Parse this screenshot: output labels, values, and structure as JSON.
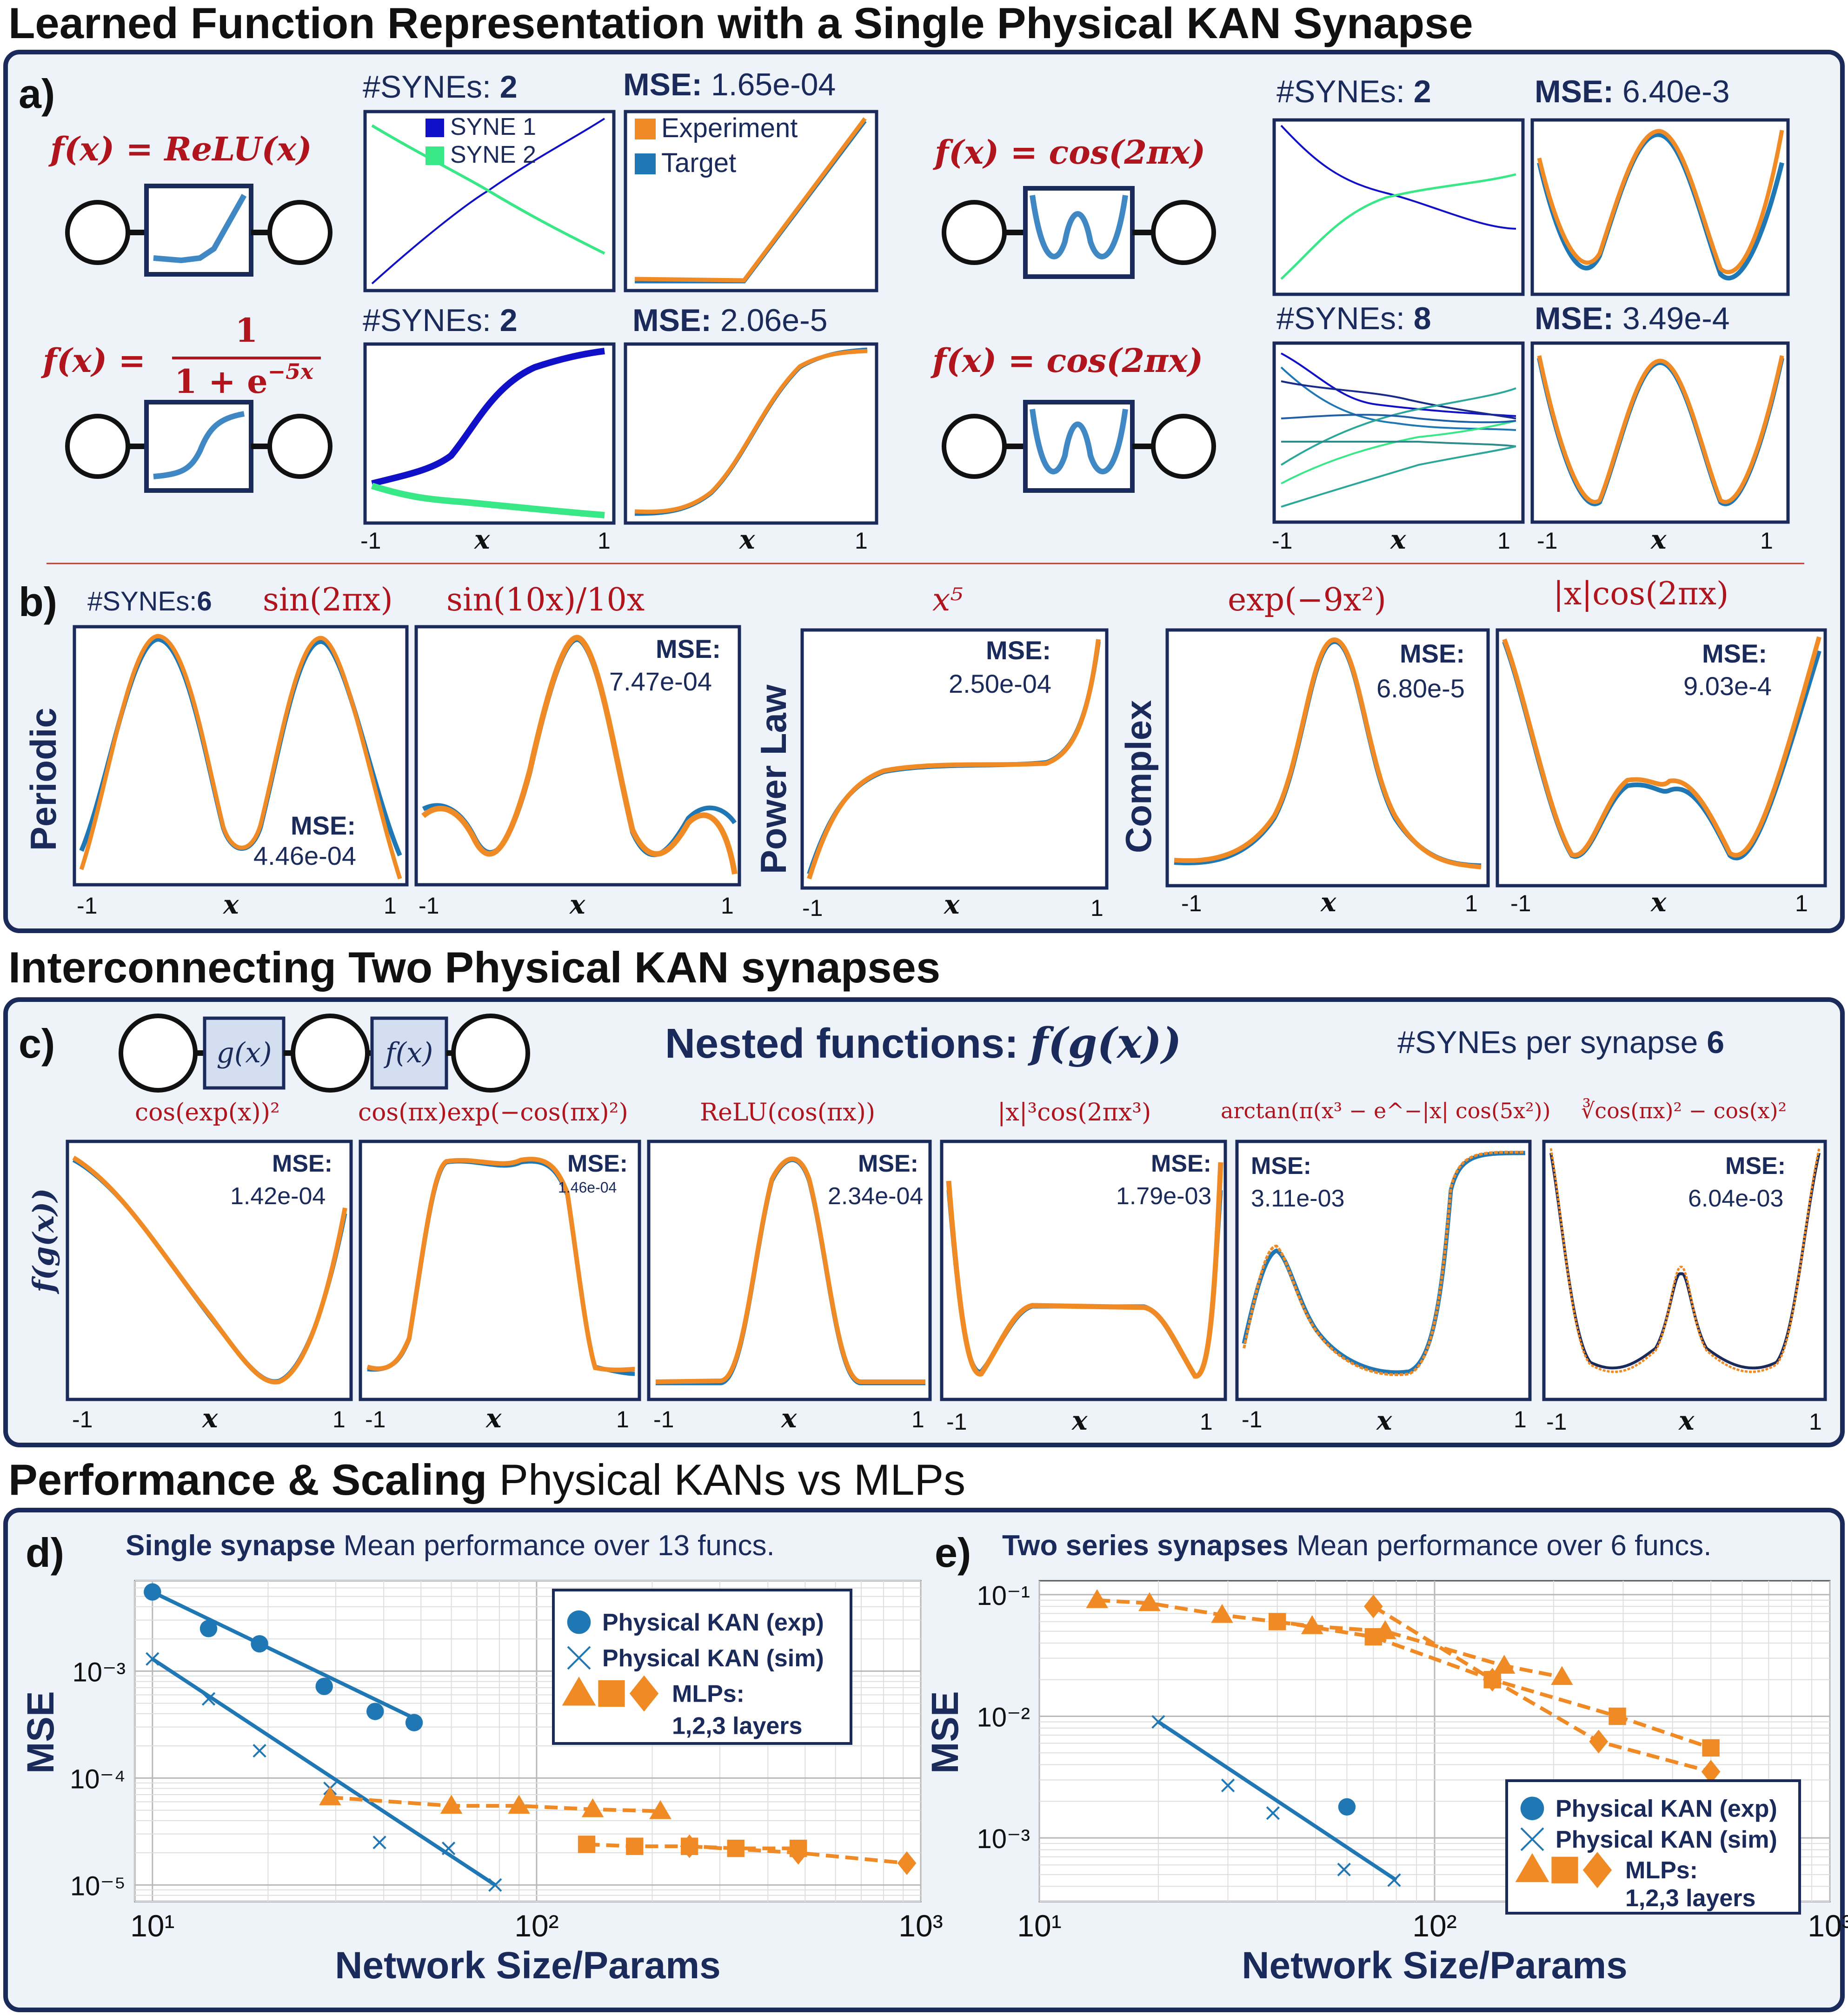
{
  "colors": {
    "navy": "#1a2a5a",
    "panel_bg": "#eef3fa",
    "func_red": "#b0141c",
    "exp_orange": "#f08a24",
    "target_blue": "#1f77b4",
    "syne1": "#1010c8",
    "syne2": "#38e887",
    "teal": "#2aa69a"
  },
  "sections": {
    "title1": "Learned Function Representation with a Single Physical KAN Synapse",
    "title2": "Interconnecting Two Physical KAN synapses",
    "title3_bold": "Performance & Scaling",
    "title3_rest": " Physical KANs vs MLPs"
  },
  "panel_a": {
    "label": "a)",
    "cases": [
      {
        "func": "f(x) = ReLU(x)",
        "synes_label": "#SYNEs:",
        "synes": "2",
        "mse_label": "MSE:",
        "mse": "1.65e-04",
        "legend_syne": [
          "SYNE 1",
          "SYNE 2"
        ],
        "legend_fit": [
          "Experiment",
          "Target"
        ]
      },
      {
        "func_lhs": "f(x) =",
        "func_num": "1",
        "func_den": "1 + e",
        "func_exp": "−5x",
        "synes_label": "#SYNEs:",
        "synes": "2",
        "mse_label": "MSE:",
        "mse": "2.06e-5"
      },
      {
        "func": "f(x) = cos(2πx)",
        "synes_label": "#SYNEs:",
        "synes": "2",
        "mse_label": "MSE:",
        "mse": "6.40e-3"
      },
      {
        "func": "f(x) = cos(2πx)",
        "synes_label": "#SYNEs:",
        "synes": "8",
        "mse_label": "MSE:",
        "mse": "3.49e-4"
      }
    ],
    "tick_left": "-1",
    "tick_right": "1",
    "xlabel": "x"
  },
  "panel_b": {
    "label": "b)",
    "synes_label": "#SYNEs:",
    "synes": "6",
    "groups": [
      "Periodic",
      "Power Law",
      "Complex"
    ],
    "plots": [
      {
        "func": "sin(2πx)",
        "mse_label": "MSE:",
        "mse": "4.46e-04"
      },
      {
        "func": "sin(10x)/10x",
        "mse_label": "MSE:",
        "mse": "7.47e-04"
      },
      {
        "func": "x⁵",
        "mse_label": "MSE:",
        "mse": "2.50e-04"
      },
      {
        "func": "exp(−9x²)",
        "mse_label": "MSE:",
        "mse": "6.80e-5"
      },
      {
        "func": "|x|cos(2πx)",
        "mse_label": "MSE:",
        "mse": "9.03e-4"
      }
    ],
    "tick_left": "-1",
    "tick_right": "1",
    "xlabel": "x"
  },
  "panel_c": {
    "label": "c)",
    "node_g": "g(x)",
    "node_f": "f(x)",
    "nested_title": "Nested functions:",
    "nested_expr": "f(g(x))",
    "synes_label": "#SYNEs per synapse",
    "synes": "6",
    "ylabel": "f(g(x))",
    "plots": [
      {
        "func": "cos(exp(x))²",
        "mse_label": "MSE:",
        "mse": "1.42e-04"
      },
      {
        "func": "cos(πx)exp(−cos(πx)²)",
        "mse_label": "MSE:",
        "mse": "1.46e-04"
      },
      {
        "func": "ReLU(cos(πx))",
        "mse_label": "MSE:",
        "mse": "2.34e-04"
      },
      {
        "func": "|x|³cos(2πx³)",
        "mse_label": "MSE:",
        "mse": "1.79e-03"
      },
      {
        "func": "arctan(π(x³ − e^−|x| cos(5x²))",
        "mse_label": "MSE:",
        "mse": "3.11e-03"
      },
      {
        "func": "∛cos(πx)² − cos(x)²",
        "mse_label": "MSE:",
        "mse": "6.04e-03"
      }
    ],
    "tick_left": "-1",
    "tick_right": "1",
    "xlabel": "x"
  },
  "panel_d": {
    "label": "d)",
    "title_bold": "Single synapse",
    "title_rest": " Mean performance over 13 funcs."
  },
  "panel_e": {
    "label": "e)",
    "title_bold": "Two series synapses",
    "title_rest": " Mean performance over 6 funcs."
  },
  "chart_data": [
    {
      "type": "scatter",
      "panel": "d",
      "title": "Single synapse Mean performance over 13 funcs.",
      "xlabel": "Network Size/Params",
      "ylabel": "MSE",
      "xscale": "log",
      "yscale": "log",
      "xlim": [
        9,
        1000
      ],
      "ylim": [
        7e-06,
        0.007
      ],
      "xtick_labels": [
        "10¹",
        "10²",
        "10³"
      ],
      "ytick_labels": [
        "10⁻³",
        "10⁻⁴",
        "10⁻⁵"
      ],
      "grid": true,
      "legend_position": "top-right",
      "legend": [
        "Physical KAN (exp)",
        "Physical KAN (sim)",
        "MLPs:",
        "1,2,3 layers"
      ],
      "series": [
        {
          "name": "Physical KAN (exp)",
          "marker": "circle",
          "fit_line": [
            [
              10,
              0.0055
            ],
            [
              49,
              0.00035
            ]
          ],
          "x": [
            10,
            14,
            19,
            28,
            38,
            48
          ],
          "y": [
            0.0055,
            0.0025,
            0.0018,
            0.00072,
            0.00042,
            0.00033
          ]
        },
        {
          "name": "Physical KAN (sim)",
          "marker": "x",
          "fit_line": [
            [
              10,
              0.0013
            ],
            [
              78,
              1e-05
            ]
          ],
          "x": [
            10,
            14,
            19,
            29,
            39,
            59,
            78
          ],
          "y": [
            0.0013,
            0.00055,
            0.00018,
            8e-05,
            2.5e-05,
            2.2e-05,
            1e-05
          ]
        },
        {
          "name": "MLP 1 layer",
          "marker": "triangle",
          "x": [
            29,
            60,
            90,
            140,
            210
          ],
          "y": [
            6.6e-05,
            5.5e-05,
            5.5e-05,
            5.1e-05,
            4.9e-05
          ]
        },
        {
          "name": "MLP 2 layers",
          "marker": "square",
          "x": [
            135,
            180,
            250,
            330,
            480
          ],
          "y": [
            2.4e-05,
            2.3e-05,
            2.3e-05,
            2.2e-05,
            2.2e-05
          ]
        },
        {
          "name": "MLP 3 layers",
          "marker": "diamond",
          "x": [
            250,
            480,
            920
          ],
          "y": [
            2.3e-05,
            2e-05,
            1.6e-05
          ]
        }
      ]
    },
    {
      "type": "scatter",
      "panel": "e",
      "title": "Two series synapses Mean performance over 6 funcs.",
      "xlabel": "Network Size/Params",
      "ylabel": "MSE",
      "xscale": "log",
      "yscale": "log",
      "xlim": [
        10,
        1000
      ],
      "ylim": [
        0.0003,
        0.13
      ],
      "xtick_labels": [
        "10¹",
        "10²",
        "10³"
      ],
      "ytick_labels": [
        "10⁻¹",
        "10⁻²",
        "10⁻³"
      ],
      "grid": true,
      "legend_position": "bottom-right",
      "legend": [
        "Physical KAN (exp)",
        "Physical KAN (sim)",
        "MLPs:",
        "1,2,3 layers"
      ],
      "series": [
        {
          "name": "Physical KAN (exp)",
          "marker": "circle",
          "x": [
            60
          ],
          "y": [
            0.0018
          ]
        },
        {
          "name": "Physical KAN (sim)",
          "marker": "x",
          "fit_line": [
            [
              20,
              0.009
            ],
            [
              80,
              0.00045
            ]
          ],
          "x": [
            20,
            30,
            39,
            59,
            79
          ],
          "y": [
            0.009,
            0.0027,
            0.0016,
            0.00055,
            0.00045
          ]
        },
        {
          "name": "MLP 1 layer",
          "marker": "triangle",
          "x": [
            14,
            19,
            29,
            49,
            75,
            150,
            210
          ],
          "y": [
            0.09,
            0.085,
            0.068,
            0.055,
            0.05,
            0.026,
            0.021
          ]
        },
        {
          "name": "MLP 2 layers",
          "marker": "square",
          "x": [
            40,
            70,
            140,
            290,
            500
          ],
          "y": [
            0.06,
            0.045,
            0.02,
            0.01,
            0.0055
          ]
        },
        {
          "name": "MLP 3 layers",
          "marker": "diamond",
          "x": [
            70,
            140,
            260,
            500
          ],
          "y": [
            0.08,
            0.02,
            0.0062,
            0.0035
          ]
        }
      ]
    }
  ]
}
